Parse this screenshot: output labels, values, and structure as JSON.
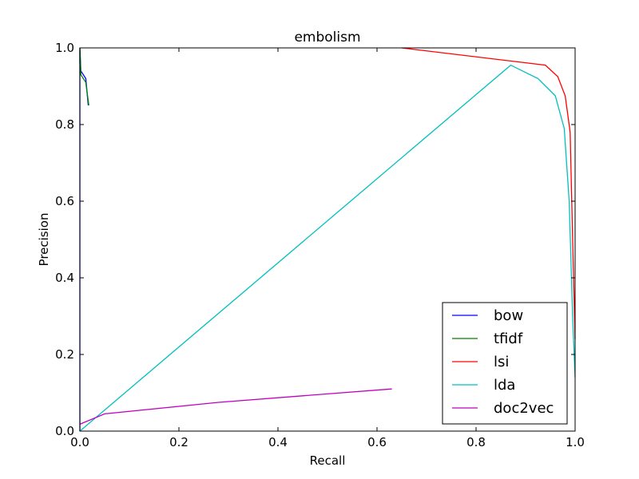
{
  "chart_data": {
    "type": "line",
    "title": "embolism",
    "xlabel": "Recall",
    "ylabel": "Precision",
    "xlim": [
      0.0,
      1.0
    ],
    "ylim": [
      0.0,
      1.0
    ],
    "xticks": [
      "0.0",
      "0.2",
      "0.4",
      "0.6",
      "0.8",
      "1.0"
    ],
    "yticks": [
      "0.0",
      "0.2",
      "0.4",
      "0.6",
      "0.8",
      "1.0"
    ],
    "grid": false,
    "legend_position": "lower-right",
    "series": [
      {
        "name": "bow",
        "color": "#0000ff",
        "x": [
          0.0,
          0.0,
          0.002,
          0.012,
          0.017
        ],
        "y": [
          0.0,
          1.0,
          0.94,
          0.92,
          0.85
        ]
      },
      {
        "name": "tfidf",
        "color": "#008000",
        "x": [
          0.0,
          0.0,
          0.002,
          0.012,
          0.018
        ],
        "y": [
          0.96,
          1.0,
          0.93,
          0.91,
          0.85
        ]
      },
      {
        "name": "lsi",
        "color": "#ff0000",
        "x": [
          0.65,
          0.94,
          0.965,
          0.98,
          0.99,
          0.995,
          1.0
        ],
        "y": [
          1.0,
          0.955,
          0.925,
          0.875,
          0.78,
          0.5,
          0.24
        ]
      },
      {
        "name": "lda",
        "color": "#00bfbf",
        "x": [
          0.0,
          0.87,
          0.925,
          0.96,
          0.978,
          0.988,
          0.995,
          1.0
        ],
        "y": [
          0.0,
          0.955,
          0.92,
          0.875,
          0.79,
          0.6,
          0.3,
          0.14
        ]
      },
      {
        "name": "doc2vec",
        "color": "#bf00bf",
        "x": [
          0.0,
          0.05,
          0.28,
          0.5,
          0.63
        ],
        "y": [
          0.018,
          0.045,
          0.075,
          0.097,
          0.11
        ]
      }
    ]
  }
}
